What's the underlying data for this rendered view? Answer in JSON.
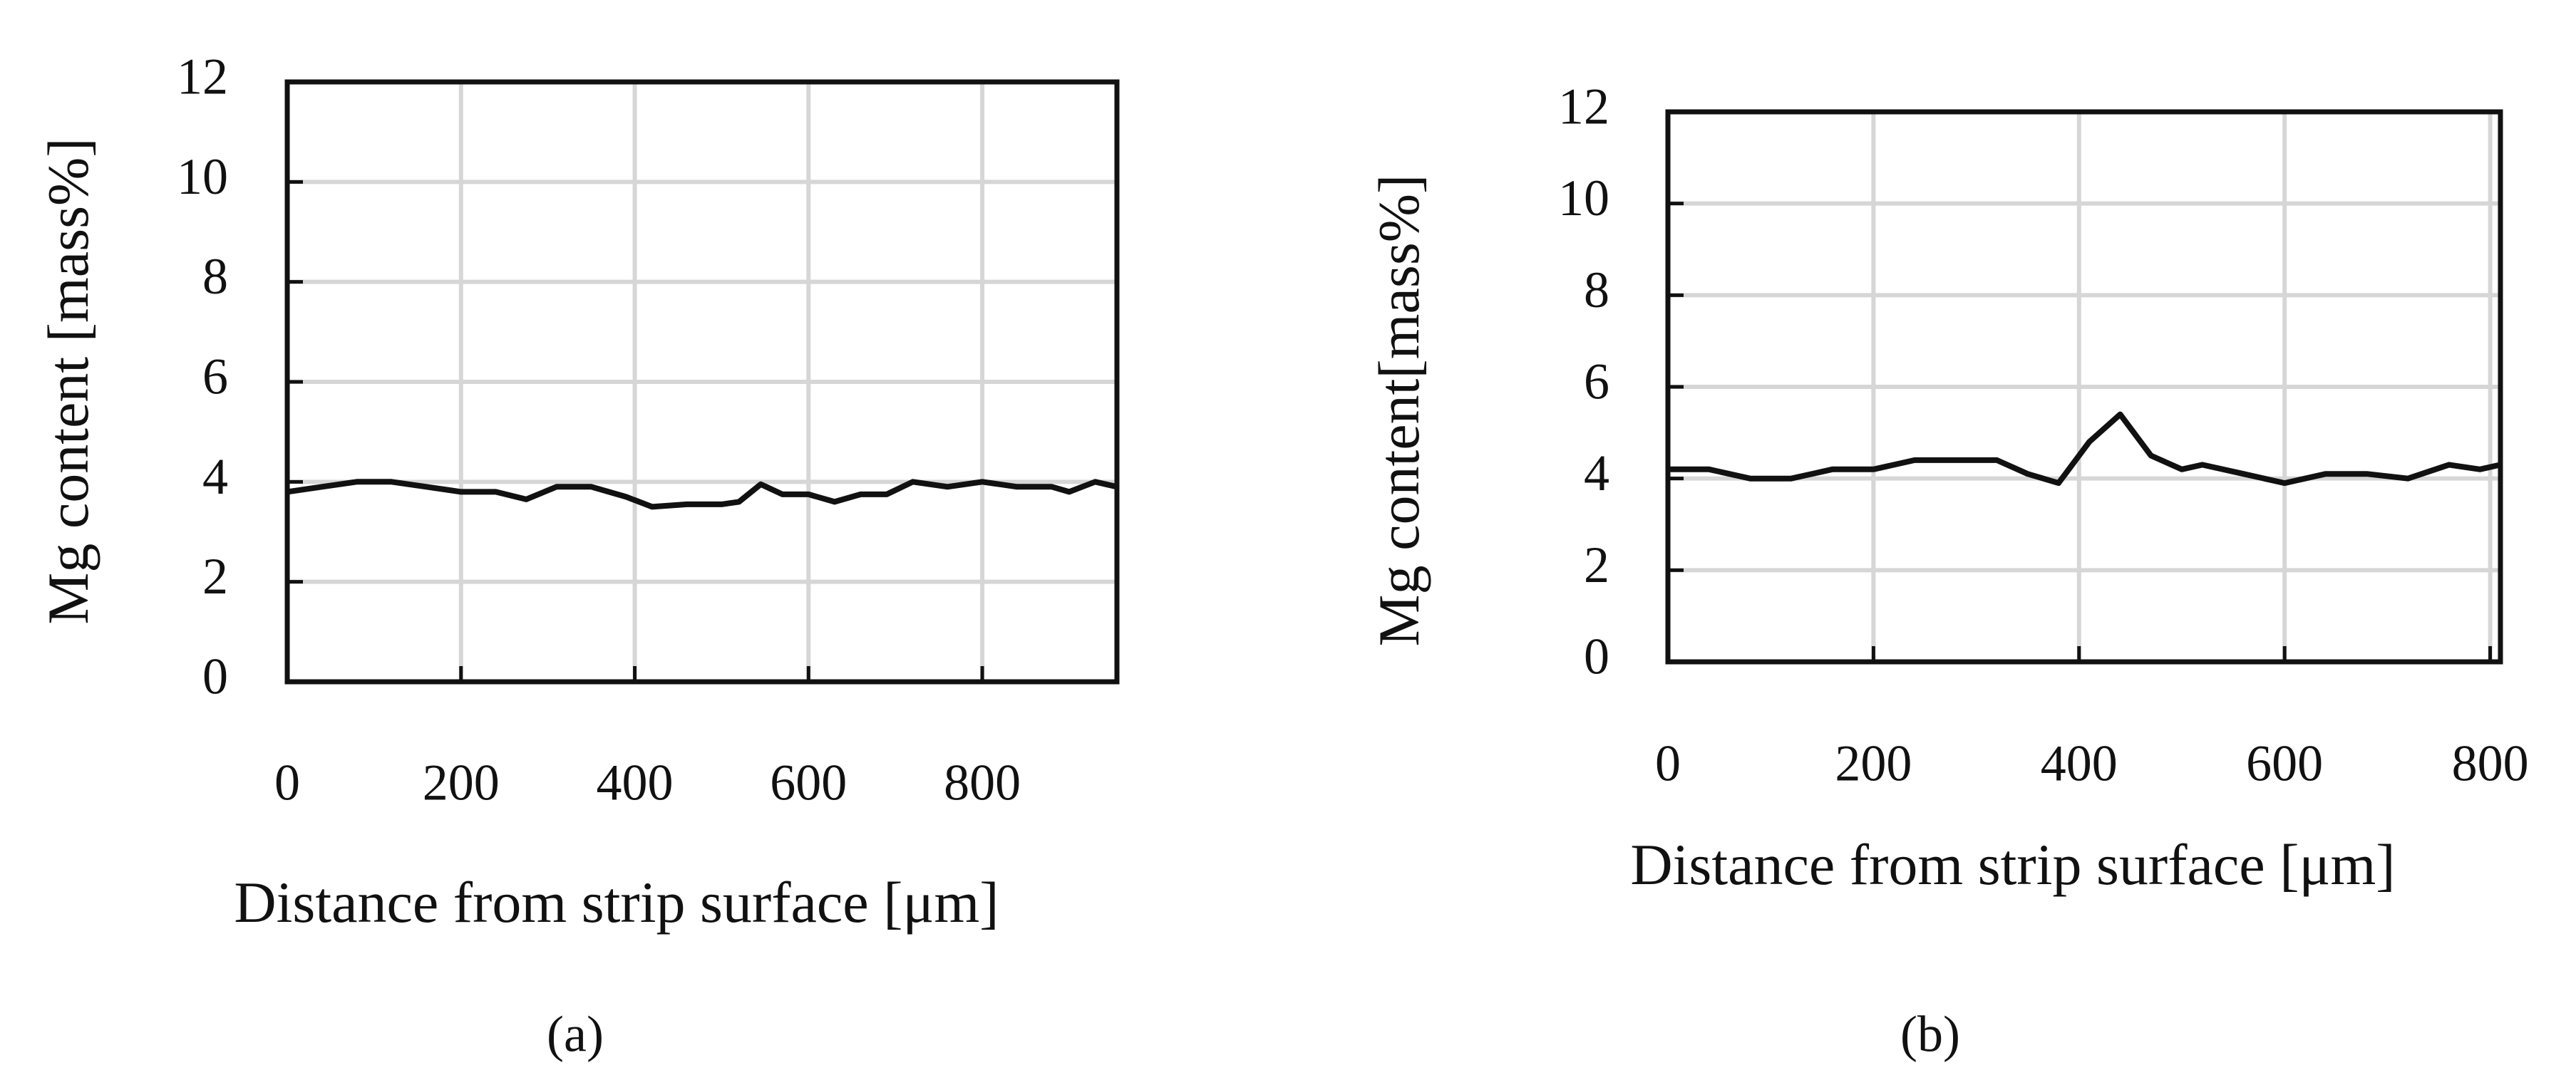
{
  "chart_data": [
    {
      "type": "line",
      "caption": "(a)",
      "xlabel": "Distance from strip surface [μm]",
      "ylabel": "Mg content [mass%]",
      "xlim": [
        0,
        955
      ],
      "ylim": [
        0,
        12
      ],
      "xticks": [
        0,
        200,
        400,
        600,
        800
      ],
      "yticks": [
        0,
        2,
        4,
        6,
        8,
        10,
        12
      ],
      "grid": true,
      "x": [
        0,
        40,
        80,
        120,
        160,
        200,
        240,
        275,
        310,
        350,
        390,
        420,
        460,
        500,
        520,
        545,
        570,
        600,
        630,
        660,
        690,
        720,
        760,
        800,
        840,
        880,
        900,
        930,
        955
      ],
      "series": [
        {
          "color": "#111111",
          "values": [
            3.8,
            3.9,
            4.0,
            4.0,
            3.9,
            3.8,
            3.8,
            3.65,
            3.9,
            3.9,
            3.7,
            3.5,
            3.55,
            3.55,
            3.6,
            3.95,
            3.75,
            3.75,
            3.6,
            3.75,
            3.75,
            4.0,
            3.9,
            4.0,
            3.9,
            3.9,
            3.8,
            4.0,
            3.9
          ]
        }
      ]
    },
    {
      "type": "line",
      "caption": "(b)",
      "xlabel": "Distance from strip surface [μm]",
      "ylabel": "Mg content[mass%]",
      "xlim": [
        0,
        810
      ],
      "ylim": [
        0,
        12
      ],
      "xticks": [
        0,
        200,
        400,
        600,
        800
      ],
      "yticks": [
        0,
        2,
        4,
        6,
        8,
        10,
        12
      ],
      "grid": true,
      "x": [
        0,
        40,
        80,
        120,
        160,
        200,
        240,
        280,
        320,
        350,
        380,
        410,
        440,
        470,
        500,
        520,
        560,
        600,
        640,
        680,
        720,
        760,
        790,
        810
      ],
      "series": [
        {
          "color": "#111111",
          "values": [
            4.2,
            4.2,
            4.0,
            4.0,
            4.2,
            4.2,
            4.4,
            4.4,
            4.4,
            4.1,
            3.9,
            4.8,
            5.4,
            4.5,
            4.2,
            4.3,
            4.1,
            3.9,
            4.1,
            4.1,
            4.0,
            4.3,
            4.2,
            4.3
          ]
        }
      ]
    }
  ]
}
